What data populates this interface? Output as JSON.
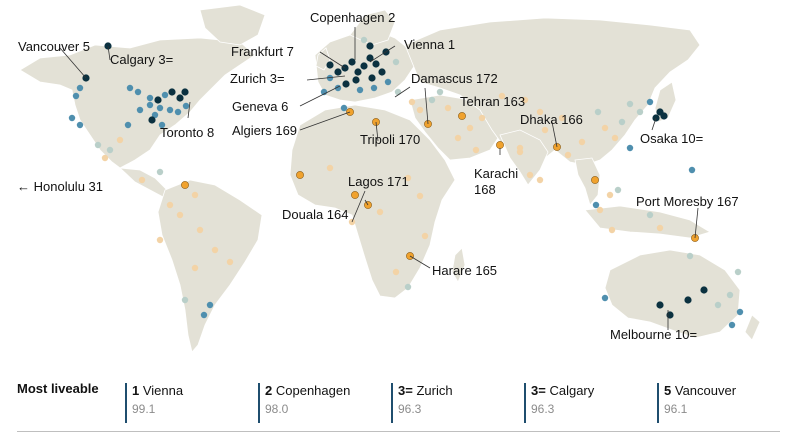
{
  "colors": {
    "ocean": "#ffffff",
    "land": "#e3e1d6",
    "land_stroke": "#ffffff",
    "most_liveable": "#0b3140",
    "liveable": "#4f8fae",
    "mid_high": "#b9cfc9",
    "mid_low": "#f3d3a6",
    "least_liveable": "#f0a22e",
    "leader_line": "#333333",
    "rank_bar": "#1f4e6e",
    "score_text": "#8c8c8c"
  },
  "labels": {
    "vancouver": "Vancouver 5",
    "calgary": "Calgary 3=",
    "frankfurt": "Frankfurt 7",
    "copenhagen": "Copenhagen 2",
    "vienna": "Vienna 1",
    "zurich": "Zurich 3=",
    "geneva": "Geneva 6",
    "algiers": "Algiers 169",
    "toronto": "Toronto 8",
    "damascus": "Damascus 172",
    "tehran": "Tehran 163",
    "dhaka": "Dhaka 166",
    "osaka": "Osaka 10=",
    "tripoli": "Tripoli 170",
    "karachi_name": "Karachi",
    "karachi_rank": "168",
    "honolulu": "← Honolulu 31",
    "lagos": "Lagos 171",
    "douala": "Douala 164",
    "port_moresby": "Port Moresby 167",
    "harare": "Harare 165",
    "melbourne": "Melbourne 10="
  },
  "footer": {
    "title": "Most liveable",
    "ranks": [
      {
        "rank": "1",
        "city": "Vienna",
        "score": "99.1"
      },
      {
        "rank": "2",
        "city": "Copenhagen",
        "score": "98.0"
      },
      {
        "rank": "3=",
        "city": "Zurich",
        "score": "96.3"
      },
      {
        "rank": "3=",
        "city": "Calgary",
        "score": "96.3"
      },
      {
        "rank": "5",
        "city": "Vancouver",
        "score": "96.1"
      }
    ]
  }
}
